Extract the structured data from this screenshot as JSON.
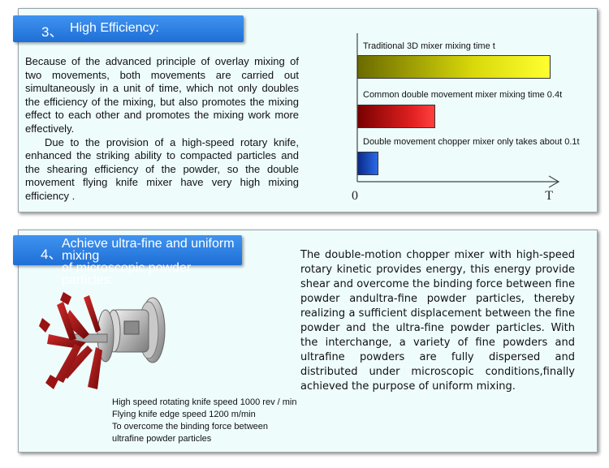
{
  "section3": {
    "number": "3、",
    "title": "High Efficiency:",
    "paragraphs": [
      "Because of the advanced principle of overlay mixing of two movements, both movements are carried out simultaneously in a unit of time, which not only doubles the efficiency of the mixing, but also promotes the mixing effect to each other and promotes the mixing work more effectively.",
      "Due to the provision of a high-speed rotary knife, enhanced the striking ability to compacted particles and the shearing efficiency of the powder, so the double movement flying knife mixer have very high  mixing efficiency ."
    ]
  },
  "chart_data": {
    "type": "bar",
    "orientation": "horizontal",
    "categories": [
      "Traditional 3D mixer mixing time t",
      "Common double movement mixer mixing time 0.4t",
      "Double movement chopper mixer only takes about 0.1t"
    ],
    "values": [
      1.0,
      0.4,
      0.1
    ],
    "unit": "t",
    "x_tick_labels": [
      "0",
      "T"
    ],
    "xlim": [
      0,
      1.05
    ],
    "colors": [
      "#d8d80a",
      "#e02020",
      "#2a6ae8"
    ]
  },
  "section4": {
    "number": "4、",
    "title_line1": "Achieve ultra-fine and uniform mixing",
    "title_line2": "of microscopic powder particles:",
    "paragraph": "The double-motion chopper mixer with high-speed rotary kinetic provides energy, this energy provide shear and overcome the binding force between fine powder andultra-fine powder particles, thereby realizing a sufficient displacement between the fine powder and the ultra-fine powder particles. With the interchange, a variety of fine powders and ultrafine powders are fully dispersed and distributed under microscopic conditions,finally achieved the purpose of uniform mixing.",
    "specs": [
      "High speed rotating knife speed 1000 rev / min",
      "Flying knife edge speed 1200 m/min",
      "To overcome the binding force between",
      "ultrafine powder particles"
    ]
  }
}
